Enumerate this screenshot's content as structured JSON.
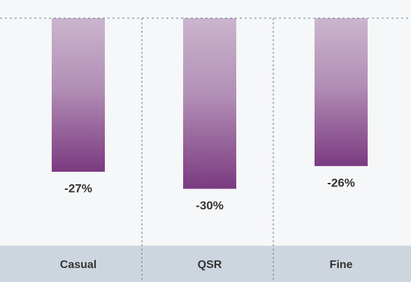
{
  "chart_data": {
    "type": "bar",
    "categories": [
      "Casual",
      "QSR",
      "Fine"
    ],
    "values": [
      -27,
      -30,
      -26
    ],
    "value_labels": [
      "-27%",
      "-30%",
      "-26%"
    ],
    "color": "#7b3a80",
    "ylim": [
      -40,
      0
    ],
    "yticks": [
      0
    ],
    "grid": true
  }
}
